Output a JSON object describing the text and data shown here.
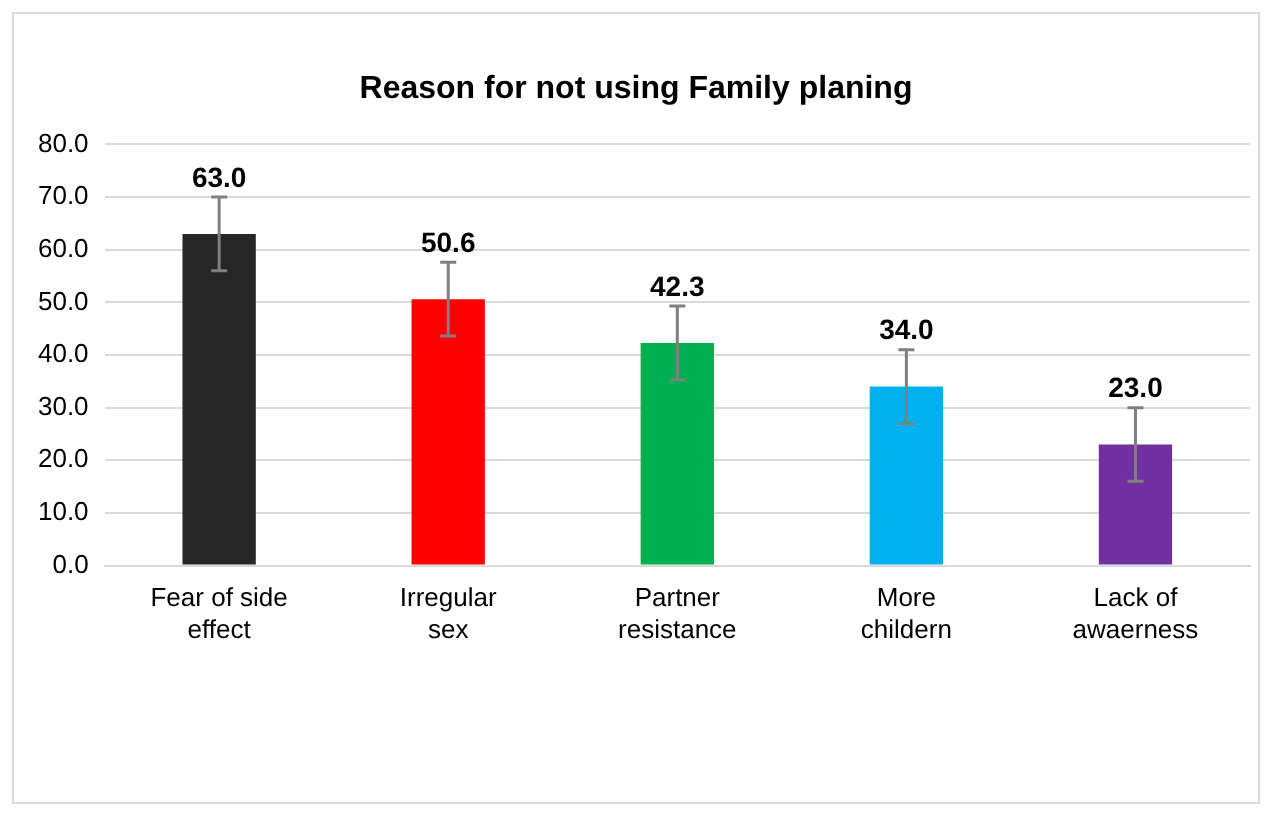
{
  "chart_data": {
    "type": "bar",
    "title": "Reason for not using Family planing",
    "categories": [
      "Fear of side effect",
      "Irregular sex",
      "Partner resistance",
      "More childern",
      "Lack of awaerness"
    ],
    "values": [
      63.0,
      50.6,
      42.3,
      34.0,
      23.0
    ],
    "colors": [
      "#262626",
      "#ff0000",
      "#00b050",
      "#00b0f0",
      "#7030a0"
    ],
    "errors": [
      7,
      7,
      7,
      7,
      7
    ],
    "ylim": [
      0,
      80
    ],
    "yticks": [
      {
        "value": 0,
        "label": "0.0"
      },
      {
        "value": 10,
        "label": "10.0"
      },
      {
        "value": 20,
        "label": "20.0"
      },
      {
        "value": 30,
        "label": "30.0"
      },
      {
        "value": 40,
        "label": "40.0"
      },
      {
        "value": 50,
        "label": "50.0"
      },
      {
        "value": 60,
        "label": "60.0"
      },
      {
        "value": 70,
        "label": "70.0"
      },
      {
        "value": 80,
        "label": "80.0"
      }
    ],
    "value_labels": [
      "63.0",
      "50.6",
      "42.3",
      "34.0",
      "23.0"
    ],
    "grid": "y"
  }
}
